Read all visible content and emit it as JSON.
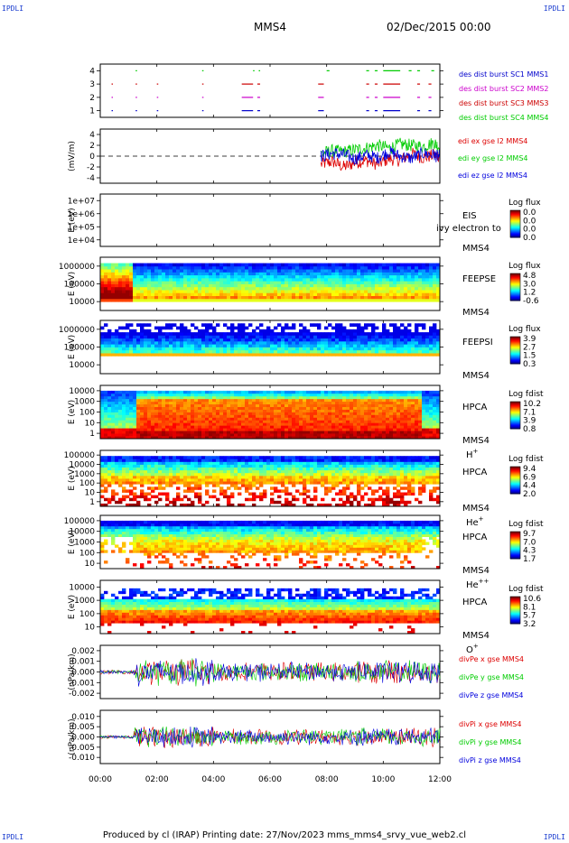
{
  "corner_label": "IPDLI",
  "header": {
    "spacecraft": "MMS4",
    "date": "02/Dec/2015 00:00"
  },
  "footer": {
    "text": "Produced by cl (IRAP)   Printing date: 27/Nov/2023   mms_mms4_srvy_vue_web2.cl"
  },
  "colors": {
    "mms1": "#0000cc",
    "mms2": "#cc00cc",
    "mms3": "#cc0000",
    "mms4": "#00cc00",
    "red": "#dd0000",
    "green": "#00cc00",
    "blue": "#0000dd"
  },
  "chart_data": [
    {
      "type": "scatter",
      "ylabel": "",
      "yticks": [
        "1",
        "2",
        "3",
        "4"
      ],
      "ylim": [
        0.5,
        4.5
      ],
      "legend": [
        "des dist burst SC1 MMS1",
        "des dist burst SC2 MMS2",
        "des dist burst SC3 MMS3",
        "des dist burst SC4 MMS4"
      ],
      "series": [
        {
          "name": "des dist burst SC1 MMS1",
          "level": 1,
          "intervals": [
            [
              0.4,
              0.42
            ],
            [
              1.25,
              1.3
            ],
            [
              2.0,
              2.05
            ],
            [
              3.6,
              3.65
            ],
            [
              5.0,
              5.4
            ],
            [
              5.55,
              5.65
            ],
            [
              7.7,
              7.9
            ],
            [
              9.4,
              9.5
            ],
            [
              9.7,
              9.8
            ],
            [
              10.0,
              10.6
            ],
            [
              11.2,
              11.3
            ],
            [
              11.6,
              11.7
            ]
          ]
        },
        {
          "name": "des dist burst SC2 MMS2",
          "level": 2,
          "intervals": [
            [
              0.4,
              0.42
            ],
            [
              1.25,
              1.3
            ],
            [
              2.0,
              2.05
            ],
            [
              3.6,
              3.65
            ],
            [
              5.0,
              5.4
            ],
            [
              5.55,
              5.65
            ],
            [
              7.7,
              7.9
            ],
            [
              9.4,
              9.5
            ],
            [
              9.7,
              9.8
            ],
            [
              10.0,
              10.6
            ],
            [
              11.2,
              11.3
            ],
            [
              11.6,
              11.7
            ]
          ]
        },
        {
          "name": "des dist burst SC3 MMS3",
          "level": 3,
          "intervals": [
            [
              0.4,
              0.42
            ],
            [
              1.25,
              1.3
            ],
            [
              2.0,
              2.05
            ],
            [
              3.6,
              3.65
            ],
            [
              5.0,
              5.4
            ],
            [
              5.55,
              5.65
            ],
            [
              7.7,
              7.9
            ],
            [
              9.4,
              9.5
            ],
            [
              9.7,
              9.8
            ],
            [
              10.0,
              10.6
            ],
            [
              11.2,
              11.3
            ],
            [
              11.6,
              11.7
            ]
          ]
        },
        {
          "name": "des dist burst SC4 MMS4",
          "level": 4,
          "intervals": [
            [
              1.25,
              1.3
            ],
            [
              3.6,
              3.65
            ],
            [
              5.4,
              5.45
            ],
            [
              5.6,
              5.65
            ],
            [
              8.0,
              8.1
            ],
            [
              9.4,
              9.5
            ],
            [
              9.7,
              9.8
            ],
            [
              10.0,
              10.6
            ],
            [
              10.9,
              11.0
            ],
            [
              11.2,
              11.3
            ],
            [
              11.7,
              11.8
            ]
          ]
        }
      ]
    },
    {
      "type": "line",
      "ylabel": "(mV/m)",
      "yticks": [
        "-4",
        "-2",
        "0",
        "2",
        "4"
      ],
      "ylim": [
        -5,
        5
      ],
      "legend": [
        "edi ex gse l2 MMS4",
        "edi ey gse l2 MMS4",
        "edi ez gse l2 MMS4"
      ],
      "data_start_hour": 7.8,
      "series": [
        {
          "name": "edi ex gse l2 MMS4",
          "hours": [
            7.8,
            8.2,
            8.6,
            9.0,
            9.4,
            9.8,
            10.2,
            10.6,
            11.0,
            11.4,
            11.8,
            12.0
          ],
          "values": [
            -1.5,
            -1.0,
            -2.0,
            -1.2,
            -0.8,
            -1.5,
            -0.5,
            -0.8,
            0.5,
            -0.3,
            0.2,
            0.0
          ]
        },
        {
          "name": "edi ey gse l2 MMS4",
          "hours": [
            7.8,
            8.2,
            8.6,
            9.0,
            9.4,
            9.8,
            10.2,
            10.6,
            11.0,
            11.4,
            11.8,
            12.0
          ],
          "values": [
            0.5,
            1.0,
            0.8,
            1.2,
            1.5,
            2.0,
            1.5,
            2.2,
            2.0,
            1.8,
            2.5,
            1.5
          ]
        },
        {
          "name": "edi ez gse l2 MMS4",
          "hours": [
            7.8,
            8.2,
            8.6,
            9.0,
            9.4,
            9.8,
            10.2,
            10.6,
            11.0,
            11.4,
            11.8,
            12.0
          ],
          "values": [
            0.0,
            0.5,
            0.3,
            -0.5,
            0.2,
            -0.3,
            0.8,
            0.0,
            -0.4,
            0.5,
            0.2,
            -0.2
          ]
        }
      ]
    },
    {
      "type": "heatmap",
      "ylabel": "E (eV)",
      "yticks": [
        "1e+04",
        "1e+05",
        "1e+06",
        "1e+07"
      ],
      "instrument": [
        "EIS",
        "MMS4"
      ],
      "overlay_text": "ivy electron to",
      "cbar_title": "Log flux",
      "cbar_ticks": [
        "0.0",
        "0.0",
        "0.0",
        "0.0"
      ],
      "empty": true
    },
    {
      "type": "heatmap",
      "ylabel": "E (eV)",
      "yticks": [
        "10000",
        "100000",
        "1000000"
      ],
      "instrument": [
        "FEEPSE",
        "MMS4"
      ],
      "cbar_title": "Log flux",
      "cbar_ticks": [
        "4.8",
        "3.0",
        "1.2",
        "-0.6"
      ]
    },
    {
      "type": "heatmap",
      "ylabel": "E (eV)",
      "yticks": [
        "10000",
        "100000",
        "1000000"
      ],
      "instrument": [
        "FEEPSI",
        "MMS4"
      ],
      "cbar_title": "Log flux",
      "cbar_ticks": [
        "3.9",
        "2.7",
        "1.5",
        "0.3"
      ]
    },
    {
      "type": "heatmap",
      "ylabel": "E (eV)",
      "yticks": [
        "1",
        "10",
        "100",
        "1000",
        "10000"
      ],
      "instrument": [
        "HPCA",
        "MMS4"
      ],
      "species": "H",
      "species_sup": "+",
      "cbar_title": "Log fdist",
      "cbar_ticks": [
        "10.2",
        "7.1",
        "3.9",
        "0.8"
      ]
    },
    {
      "type": "heatmap",
      "ylabel": "E (eV)",
      "yticks": [
        "1",
        "10",
        "100",
        "1000",
        "10000",
        "100000"
      ],
      "instrument": [
        "HPCA",
        "MMS4"
      ],
      "species": "He",
      "species_sup": "+",
      "cbar_title": "Log fdist",
      "cbar_ticks": [
        "9.4",
        "6.9",
        "4.4",
        "2.0"
      ]
    },
    {
      "type": "heatmap",
      "ylabel": "E (eV)",
      "yticks": [
        "10",
        "100",
        "1000",
        "10000",
        "100000"
      ],
      "instrument": [
        "HPCA",
        "MMS4"
      ],
      "species": "He",
      "species_sup": "++",
      "cbar_title": "Log fdist",
      "cbar_ticks": [
        "9.7",
        "7.0",
        "4.3",
        "1.7"
      ]
    },
    {
      "type": "heatmap",
      "ylabel": "E (eV)",
      "yticks": [
        "10",
        "100",
        "1000",
        "10000"
      ],
      "instrument": [
        "HPCA",
        "MMS4"
      ],
      "species": "O",
      "species_sup": "+",
      "cbar_title": "Log fdist",
      "cbar_ticks": [
        "10.6",
        "8.1",
        "5.7",
        "3.2"
      ]
    },
    {
      "type": "line",
      "ylabel": "(nPa/km)",
      "yticks": [
        "-0.002",
        "-0.001",
        "0.000",
        "0.001",
        "0.002"
      ],
      "ylim": [
        -0.0025,
        0.0025
      ],
      "legend": [
        "divPe x gse MMS4",
        "divPe y gse MMS4",
        "divPe z gse MMS4"
      ]
    },
    {
      "type": "line",
      "ylabel": "(nPa/km)",
      "yticks": [
        "-0.010",
        "-0.005",
        "0.000",
        "0.005",
        "0.010"
      ],
      "ylim": [
        -0.013,
        0.013
      ],
      "legend": [
        "divPi x gse MMS4",
        "divPi y gse MMS4",
        "divPi z gse MMS4"
      ]
    }
  ],
  "time_axis": {
    "ticks": [
      "00:00",
      "02:00",
      "04:00",
      "06:00",
      "08:00",
      "10:00",
      "12:00"
    ],
    "range_hours": [
      0,
      12
    ]
  }
}
